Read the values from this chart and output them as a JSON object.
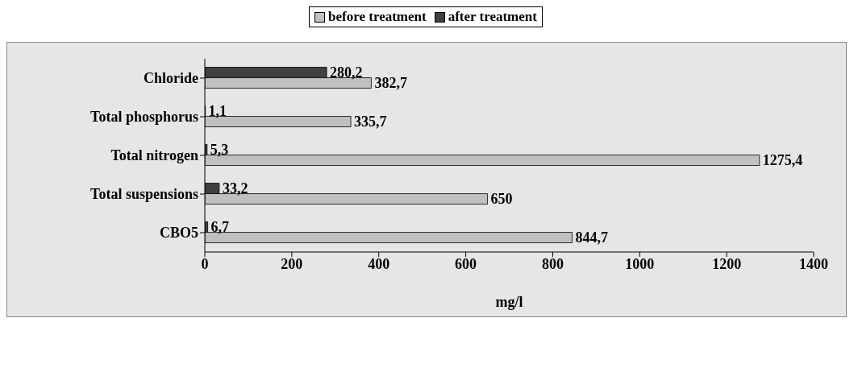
{
  "chart_data": {
    "type": "bar",
    "orientation": "horizontal",
    "categories": [
      "Chloride",
      "Total phosphorus",
      "Total nitrogen",
      "Total suspensions",
      "CBO5"
    ],
    "series": [
      {
        "name": "before treatment",
        "color": "#c0c0c0",
        "values": [
          382.7,
          335.7,
          1275.4,
          650,
          844.7
        ],
        "value_labels": [
          "382,7",
          "335,7",
          "1275,4",
          "650",
          "844,7"
        ]
      },
      {
        "name": "after treatment",
        "color": "#404040",
        "values": [
          280.2,
          1.1,
          5.3,
          33.2,
          6.7
        ],
        "value_labels": [
          "280,2",
          "1,1",
          "5,3",
          "33,2",
          "6,7"
        ]
      }
    ],
    "xlabel": "mg/l",
    "xlim": [
      0,
      1400
    ],
    "xticks": [
      0,
      200,
      400,
      600,
      800,
      1000,
      1200,
      1400
    ],
    "grid": false,
    "legend": "top"
  }
}
